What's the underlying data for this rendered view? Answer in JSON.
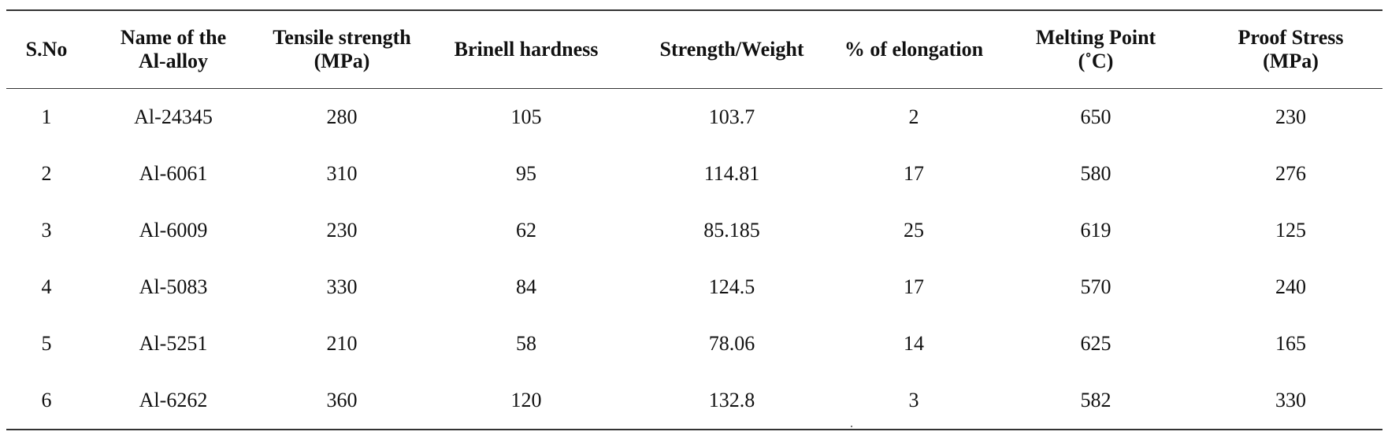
{
  "table": {
    "headers": [
      [
        "S.No"
      ],
      [
        "Name of the",
        "Al-alloy"
      ],
      [
        "Tensile strength",
        "(MPa)"
      ],
      [
        "Brinell hardness"
      ],
      [
        "Strength/Weight"
      ],
      [
        "% of elongation"
      ],
      [
        "Melting Point",
        "(˚C)"
      ],
      [
        "Proof Stress",
        "(MPa)"
      ]
    ],
    "rows": [
      [
        "1",
        "Al-24345",
        "280",
        "105",
        "103.7",
        "2",
        "650",
        "230"
      ],
      [
        "2",
        "Al-6061",
        "310",
        "95",
        "114.81",
        "17",
        "580",
        "276"
      ],
      [
        "3",
        "Al-6009",
        "230",
        "62",
        "85.185",
        "25",
        "619",
        "125"
      ],
      [
        "4",
        "Al-5083",
        "330",
        "84",
        "124.5",
        "17",
        "570",
        "240"
      ],
      [
        "5",
        "Al-5251",
        "210",
        "58",
        "78.06",
        "14",
        "625",
        "165"
      ],
      [
        "6",
        "Al-6262",
        "360",
        "120",
        "132.8",
        "3",
        "582",
        "330"
      ]
    ]
  }
}
